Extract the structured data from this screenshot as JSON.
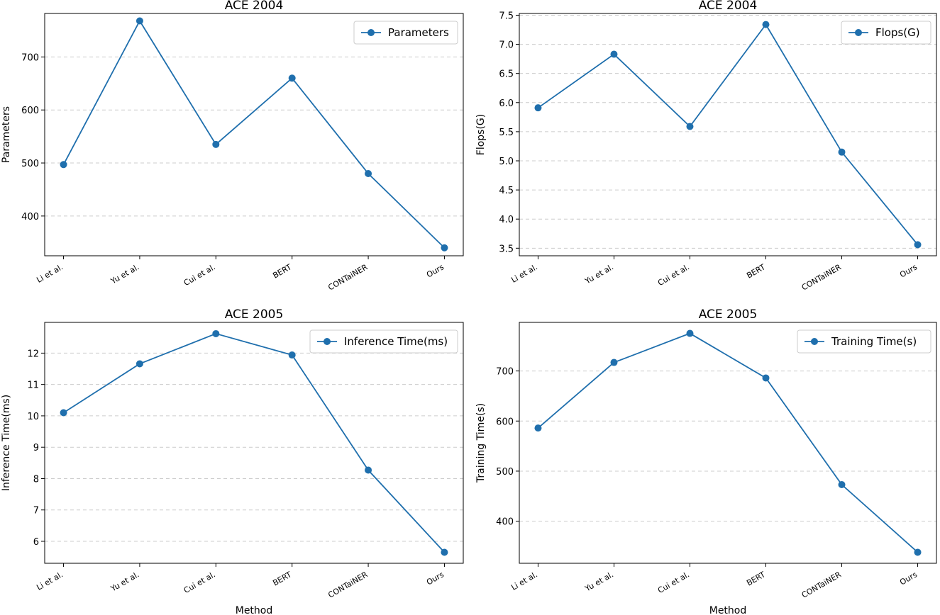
{
  "figure": {
    "shared_xlabel": "Method"
  },
  "chart_data": [
    {
      "type": "line",
      "title": "ACE 2004",
      "xlabel": "",
      "ylabel": "Parameters",
      "categories": [
        "Li et al.",
        "Yu et al.",
        "Cui et al.",
        "BERT",
        "CONTaiNER",
        "Ours"
      ],
      "series": [
        {
          "name": "Parameters",
          "values": [
            497,
            768,
            535,
            660,
            480,
            340
          ],
          "color": "#1f6fad"
        }
      ],
      "ylim": [
        325,
        782
      ],
      "yticks": [
        400,
        500,
        600,
        700
      ],
      "legend": "top-right",
      "grid": "y-dashed"
    },
    {
      "type": "line",
      "title": "ACE 2004",
      "xlabel": "",
      "ylabel": "Flops(G)",
      "categories": [
        "Li et al.",
        "Yu et al.",
        "Cui et al.",
        "BERT",
        "CONTaiNER",
        "Ours"
      ],
      "series": [
        {
          "name": "Flops(G)",
          "values": [
            5.91,
            6.83,
            5.59,
            7.34,
            5.15,
            3.56
          ],
          "color": "#1f6fad"
        }
      ],
      "ylim": [
        3.37,
        7.53
      ],
      "yticks": [
        3.5,
        4.0,
        4.5,
        5.0,
        5.5,
        6.0,
        6.5,
        7.0,
        7.5
      ],
      "yticks_fmt": "fixed1",
      "legend": "top-right",
      "grid": "y-dashed"
    },
    {
      "type": "line",
      "title": "ACE 2005",
      "xlabel": "Method",
      "ylabel": "Inference Time(ms)",
      "categories": [
        "Li et al.",
        "Yu et al.",
        "Cui et al.",
        "BERT",
        "CONTaiNER",
        "Ours"
      ],
      "series": [
        {
          "name": "Inference Time(ms)",
          "values": [
            10.1,
            11.66,
            12.62,
            11.94,
            8.27,
            5.65
          ],
          "color": "#1f6fad"
        }
      ],
      "ylim": [
        5.3,
        12.98
      ],
      "yticks": [
        6,
        7,
        8,
        9,
        10,
        11,
        12
      ],
      "legend": "top-right",
      "grid": "y-dashed"
    },
    {
      "type": "line",
      "title": "ACE 2005",
      "xlabel": "Method",
      "ylabel": "Training Time(s)",
      "categories": [
        "Li et al.",
        "Yu et al.",
        "Cui et al.",
        "BERT",
        "CONTaiNER",
        "Ours"
      ],
      "series": [
        {
          "name": "Training Time(s)",
          "values": [
            586,
            717,
            775,
            686,
            473,
            338
          ],
          "color": "#1f6fad"
        }
      ],
      "ylim": [
        316,
        797
      ],
      "yticks": [
        400,
        500,
        600,
        700
      ],
      "legend": "top-right",
      "grid": "y-dashed"
    }
  ]
}
